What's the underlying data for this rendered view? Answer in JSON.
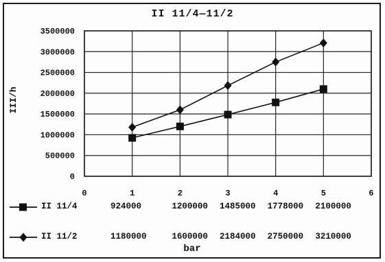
{
  "chart_data": {
    "type": "line",
    "title": "II 11/4—11/2",
    "xlabel": "bar",
    "ylabel": "III/h",
    "xlim": [
      0,
      6
    ],
    "ylim": [
      0,
      3500000
    ],
    "x_ticks": [
      "0",
      "1",
      "2",
      "3",
      "4",
      "5",
      "6"
    ],
    "y_ticks": [
      "0",
      "500000",
      "1000000",
      "1500000",
      "2000000",
      "2500000",
      "3000000",
      "3500000"
    ],
    "grid": true,
    "legend": "data table below axis",
    "x": [
      1,
      2,
      3,
      4,
      5
    ],
    "series": [
      {
        "name": "II 11/4",
        "marker": "square",
        "values": [
          924000,
          1200000,
          1485000,
          1778000,
          2100000
        ],
        "labels": [
          "924000",
          "1200000",
          "1485000",
          "1778000",
          "2100000"
        ]
      },
      {
        "name": "II 11/2",
        "marker": "diamond",
        "values": [
          1180000,
          1600000,
          2184000,
          2750000,
          3210000
        ],
        "labels": [
          "1180000",
          "1600000",
          "2184000",
          "2750000",
          "3210000"
        ]
      }
    ]
  }
}
